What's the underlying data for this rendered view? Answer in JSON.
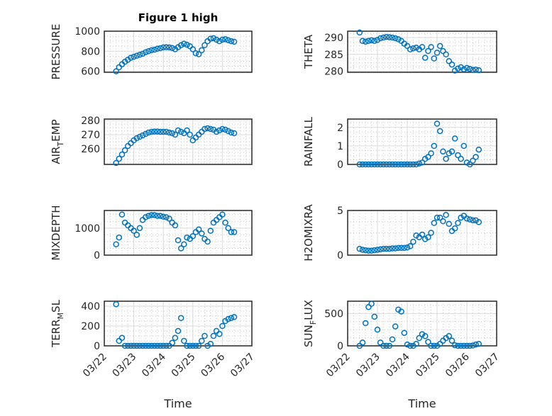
{
  "figure_title": "Figure 1 high",
  "colors": {
    "marker": "#0072BD",
    "axis": "#262626",
    "grid": "#d9d9d9"
  },
  "chart_data": {
    "type": "scatter",
    "x_label": "Time",
    "x_tick_labels": [
      "03/22",
      "03/23",
      "03/24",
      "03/25",
      "03/26",
      "03/27"
    ],
    "x_range_days": [
      0,
      5
    ],
    "x_days": [
      0.4,
      0.5,
      0.6,
      0.7,
      0.8,
      0.9,
      1.0,
      1.1,
      1.2,
      1.3,
      1.4,
      1.5,
      1.6,
      1.7,
      1.8,
      1.9,
      2.0,
      2.1,
      2.2,
      2.3,
      2.4,
      2.5,
      2.6,
      2.7,
      2.8,
      2.9,
      3.0,
      3.1,
      3.2,
      3.3,
      3.4,
      3.5,
      3.6,
      3.7,
      3.8,
      3.9,
      4.0,
      4.1,
      4.2,
      4.3,
      4.4
    ],
    "panels": [
      {
        "ylabel": "PRESSURE",
        "ylim": [
          590,
          1000
        ],
        "yticks": [
          600,
          800,
          1000
        ],
        "values": [
          600,
          640,
          670,
          695,
          715,
          735,
          745,
          755,
          765,
          775,
          790,
          800,
          810,
          815,
          825,
          830,
          838,
          840,
          838,
          832,
          820,
          840,
          860,
          875,
          865,
          850,
          820,
          780,
          770,
          810,
          860,
          900,
          925,
          930,
          915,
          900,
          915,
          920,
          910,
          900,
          895
        ]
      },
      {
        "ylabel": "THETA",
        "ylim": [
          279.7,
          291.9
        ],
        "yticks": [
          280,
          285,
          290
        ],
        "values": [
          291.5,
          289,
          288.8,
          289,
          289.2,
          289,
          289.3,
          289.8,
          290,
          290.2,
          290.1,
          290,
          289.8,
          289.5,
          289,
          288.2,
          287.5,
          286.5,
          286.8,
          287,
          286.5,
          287.2,
          284,
          286,
          287.2,
          283.8,
          285.5,
          287.5,
          286,
          285,
          283,
          282,
          280.2,
          280.8,
          281.2,
          280.6,
          281,
          280.7,
          280.4,
          280.5,
          280.3
        ]
      },
      {
        "ylabel": "AIR_TEMP",
        "ylim": [
          249,
          281
        ],
        "yticks": [
          260,
          270,
          280
        ],
        "values": [
          250,
          253,
          256,
          259,
          262,
          264,
          266,
          267.5,
          268.5,
          269.5,
          270.5,
          271.5,
          272,
          272.2,
          272.2,
          272,
          272,
          272,
          271.5,
          271,
          270,
          273,
          272,
          271,
          273,
          270,
          266,
          268,
          270,
          272,
          274,
          274.5,
          274,
          273.5,
          272,
          273,
          274,
          273.5,
          272.5,
          271.5,
          271
        ]
      },
      {
        "ylabel": "RAINFALL",
        "ylim": [
          0,
          2.45
        ],
        "yticks": [
          0,
          1,
          2
        ],
        "values": [
          0,
          0,
          0,
          0,
          0,
          0,
          0,
          0,
          0,
          0,
          0,
          0,
          0,
          0,
          0,
          0,
          0,
          0,
          0,
          0,
          0.05,
          0.1,
          0.3,
          0.4,
          0.6,
          1.0,
          2.2,
          1.8,
          0.7,
          0.3,
          0.6,
          0.7,
          1.4,
          0.5,
          0.3,
          1.0,
          0.1,
          0,
          0.2,
          0.4,
          0.8
        ]
      },
      {
        "ylabel": "MIXDEPTH",
        "ylim": [
          0,
          1650
        ],
        "yticks": [
          0,
          1000
        ],
        "values": [
          400,
          650,
          1500,
          1200,
          1100,
          1000,
          900,
          750,
          1000,
          1300,
          1400,
          1450,
          1480,
          1480,
          1450,
          1450,
          1420,
          1400,
          1350,
          1200,
          1100,
          550,
          250,
          400,
          650,
          600,
          700,
          850,
          950,
          800,
          600,
          500,
          900,
          1200,
          1300,
          1400,
          1500,
          1200,
          1000,
          850,
          850
        ]
      },
      {
        "ylabel": "H2OMIXRA",
        "ylim": [
          0,
          5
        ],
        "yticks": [
          0,
          5
        ],
        "values": [
          0.7,
          0.6,
          0.55,
          0.5,
          0.5,
          0.55,
          0.6,
          0.65,
          0.7,
          0.7,
          0.7,
          0.75,
          0.75,
          0.8,
          0.8,
          0.8,
          0.85,
          1.0,
          1.5,
          2.2,
          2.0,
          2.3,
          1.8,
          2.0,
          2.5,
          3.6,
          4.2,
          4.2,
          3.8,
          4.5,
          3.5,
          2.7,
          3.0,
          3.6,
          4.2,
          4.4,
          4.1,
          4.0,
          3.9,
          3.9,
          3.7
        ]
      },
      {
        "ylabel": "TERR_MSL",
        "ylim": [
          0,
          450
        ],
        "yticks": [
          0,
          200,
          400
        ],
        "values": [
          420,
          50,
          80,
          0,
          0,
          0,
          0,
          0,
          0,
          0,
          0,
          0,
          0,
          0,
          0,
          0,
          0,
          0,
          0,
          30,
          80,
          150,
          280,
          50,
          0,
          0,
          0,
          0,
          0,
          50,
          100,
          0,
          20,
          100,
          150,
          120,
          200,
          250,
          270,
          280,
          290
        ]
      },
      {
        "ylabel": "SUN_FLUX",
        "ylim": [
          0,
          690
        ],
        "yticks": [
          0,
          500
        ],
        "values": [
          0,
          50,
          350,
          600,
          650,
          450,
          250,
          50,
          0,
          0,
          0,
          100,
          300,
          560,
          530,
          200,
          20,
          0,
          0,
          30,
          120,
          180,
          150,
          60,
          0,
          0,
          0,
          30,
          80,
          120,
          150,
          80,
          10,
          0,
          0,
          0,
          0,
          0,
          5,
          20,
          30
        ]
      }
    ]
  }
}
